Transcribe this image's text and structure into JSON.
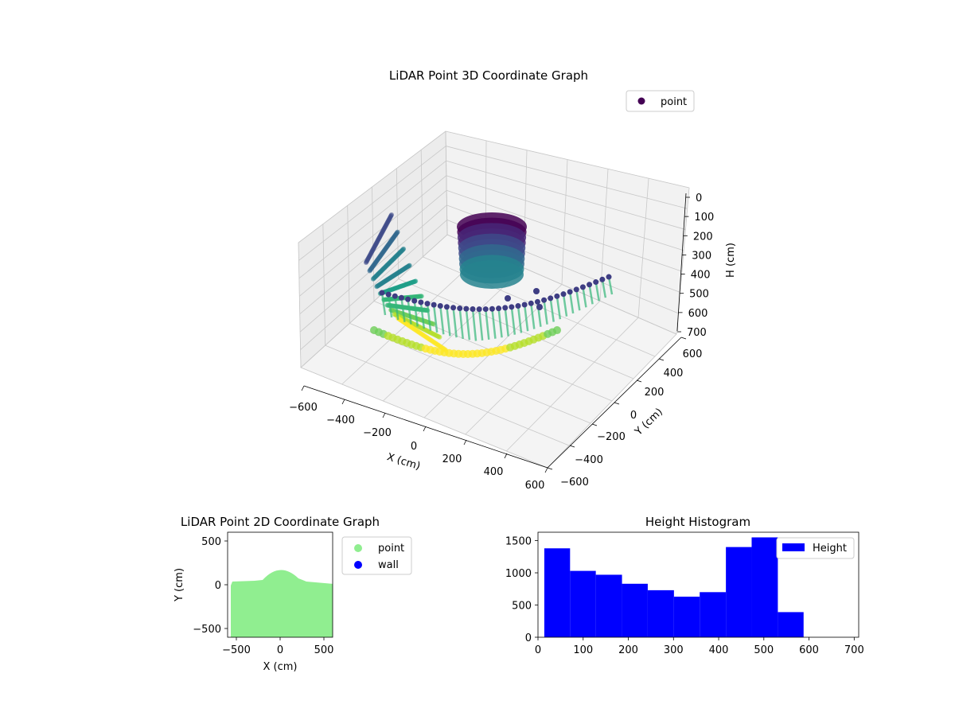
{
  "chart_data": [
    {
      "type": "scatter",
      "title": "LiDAR Point 3D Coordinate Graph",
      "xlabel": "X (cm)",
      "ylabel": "Y (cm)",
      "zlabel": "H (cm)",
      "xticks": [
        "−600",
        "−400",
        "−200",
        "0",
        "200",
        "400",
        "600"
      ],
      "yticks": [
        "−600",
        "−400",
        "−200",
        "0",
        "200",
        "400",
        "600"
      ],
      "zticks": [
        "0",
        "100",
        "200",
        "300",
        "400",
        "500",
        "600",
        "700"
      ],
      "xlim": [
        -600,
        600
      ],
      "ylim": [
        -600,
        600
      ],
      "zlim": [
        700,
        0
      ],
      "legend": {
        "entries": [
          {
            "label": "point",
            "color": "#440154"
          }
        ],
        "placement": "upper right"
      },
      "colormap": "viridis",
      "grid": true
    },
    {
      "type": "scatter",
      "title": "LiDAR Point 2D Coordinate Graph",
      "xlabel": "X (cm)",
      "ylabel": "Y (cm)",
      "xticks": [
        "−500",
        "0",
        "500"
      ],
      "yticks": [
        "500",
        "0",
        "−500"
      ],
      "xlim": [
        -600,
        600
      ],
      "ylim": [
        -600,
        600
      ],
      "series": [
        {
          "name": "point",
          "color": "#90ee90"
        },
        {
          "name": "wall",
          "color": "#0000ff"
        }
      ],
      "legend_placement": "outside right"
    },
    {
      "type": "bar",
      "title": "Height Histogram",
      "xticks": [
        "0",
        "100",
        "200",
        "300",
        "400",
        "500",
        "600",
        "700"
      ],
      "yticks": [
        "0",
        "500",
        "1000",
        "1500"
      ],
      "xlim": [
        0,
        710
      ],
      "ylim": [
        0,
        1630
      ],
      "bins": [
        {
          "x0": 14,
          "x1": 71,
          "count": 1380
        },
        {
          "x0": 71,
          "x1": 128,
          "count": 1030
        },
        {
          "x0": 128,
          "x1": 186,
          "count": 970
        },
        {
          "x0": 186,
          "x1": 243,
          "count": 830
        },
        {
          "x0": 243,
          "x1": 301,
          "count": 730
        },
        {
          "x0": 301,
          "x1": 358,
          "count": 630
        },
        {
          "x0": 358,
          "x1": 416,
          "count": 700
        },
        {
          "x0": 416,
          "x1": 473,
          "count": 1400
        },
        {
          "x0": 473,
          "x1": 531,
          "count": 1550
        },
        {
          "x0": 531,
          "x1": 588,
          "count": 390
        }
      ],
      "series": [
        {
          "name": "Height",
          "color": "#0000ff"
        }
      ],
      "legend_placement": "upper right"
    }
  ]
}
